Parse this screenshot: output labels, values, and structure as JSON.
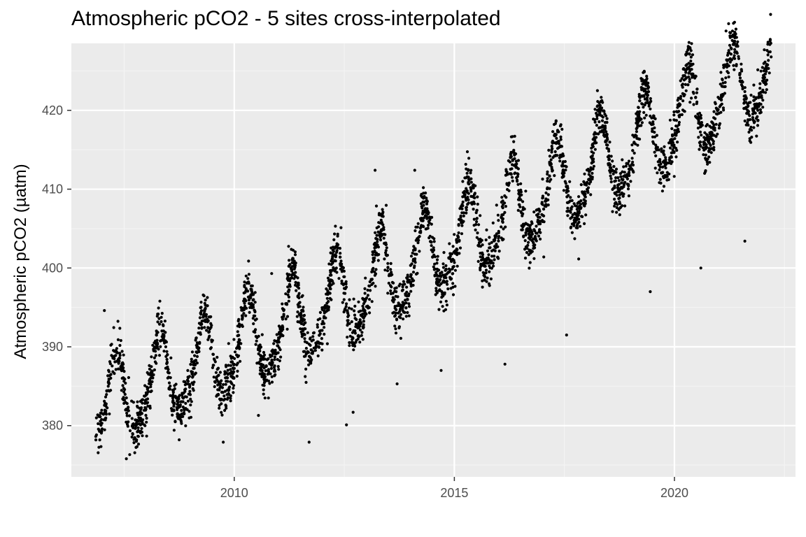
{
  "chart_data": {
    "type": "scatter",
    "title": "Atmospheric pCO2 - 5 sites cross-interpolated",
    "xlabel": "",
    "ylabel": "Atmospheric pCO2 (µatm)",
    "xlim": [
      2006.3,
      2022.75
    ],
    "ylim": [
      373.5,
      428.5
    ],
    "x_ticks": [
      2010,
      2015,
      2020
    ],
    "x_tick_labels": [
      "2010",
      "2015",
      "2020"
    ],
    "y_ticks": [
      380,
      390,
      400,
      410,
      420
    ],
    "y_tick_labels": [
      "380",
      "390",
      "400",
      "410",
      "420"
    ],
    "grid": true,
    "legend": "none",
    "x_range_data": [
      2006.85,
      2022.2
    ],
    "trend": {
      "intercept_at_2007": 382.5,
      "slope_per_year": 2.3
    },
    "seasonal_amplitude": 5.5,
    "peak_month_fraction": 0.3,
    "noise_sd": 1.5,
    "point_count": 3600,
    "outliers": [
      {
        "x": 2007.05,
        "y": 394.6
      },
      {
        "x": 2013.2,
        "y": 412.4
      },
      {
        "x": 2014.1,
        "y": 412.4
      },
      {
        "x": 2018.25,
        "y": 422.5
      },
      {
        "x": 2021.3,
        "y": 426.4
      },
      {
        "x": 2022.1,
        "y": 425.3
      },
      {
        "x": 2011.7,
        "y": 377.9
      },
      {
        "x": 2012.55,
        "y": 380.1
      },
      {
        "x": 2020.6,
        "y": 400.0
      },
      {
        "x": 2021.6,
        "y": 403.4
      },
      {
        "x": 2019.45,
        "y": 397.0
      },
      {
        "x": 2017.55,
        "y": 391.5
      },
      {
        "x": 2014.7,
        "y": 387.0
      },
      {
        "x": 2016.15,
        "y": 387.8
      },
      {
        "x": 2007.55,
        "y": 375.8
      },
      {
        "x": 2009.75,
        "y": 377.9
      },
      {
        "x": 2010.55,
        "y": 381.3
      },
      {
        "x": 2013.7,
        "y": 385.3
      },
      {
        "x": 2012.7,
        "y": 381.7
      },
      {
        "x": 2010.85,
        "y": 399.3
      },
      {
        "x": 2008.75,
        "y": 378.2
      }
    ],
    "colors": {
      "panel_bg": "#ebebeb",
      "grid_major": "#ffffff",
      "grid_minor": "#f4f4f4",
      "points": "#000000",
      "tick_text": "#4d4d4d",
      "tick_mark": "#333333"
    }
  }
}
